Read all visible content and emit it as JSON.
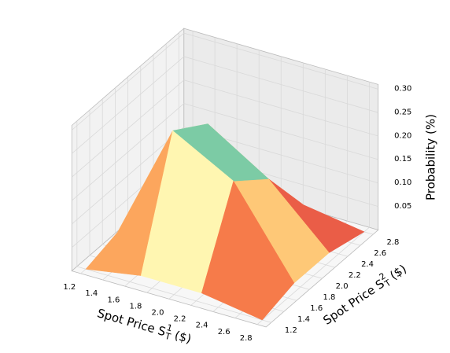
{
  "chart_data": {
    "type": "surface",
    "x_label": {
      "text": "Spot Price S",
      "sub": "T",
      "sup": "1",
      "end": "($)"
    },
    "y_label": {
      "text": "Spot Price S",
      "sub": "T",
      "sup": "2",
      "end": "($)"
    },
    "z_label": "Probability (%)",
    "x": [
      1.2,
      1.7,
      2.25,
      2.8
    ],
    "y": [
      1.2,
      1.7,
      2.25,
      2.8
    ],
    "z": [
      [
        0.0,
        0.02,
        0.02,
        0.0
      ],
      [
        0.02,
        0.27,
        0.2,
        0.02
      ],
      [
        0.02,
        0.22,
        0.14,
        0.02
      ],
      [
        0.0,
        0.02,
        0.02,
        0.0
      ]
    ],
    "colormap": [
      "#9e0142",
      "#d53e4f",
      "#f46d43",
      "#fdae61",
      "#fee08b",
      "#ffffbf",
      "#e6f598",
      "#abdda4",
      "#66c2a5",
      "#3288bd",
      "#5e4fa2"
    ],
    "xlim": [
      1.12,
      2.88
    ],
    "ylim": [
      1.12,
      2.88
    ],
    "zlim": [
      0.0,
      0.31
    ],
    "xticks": [
      1.2,
      1.4,
      1.6,
      1.8,
      {
        "value": 2.0,
        "label": "2.0"
      },
      2.2,
      2.4,
      2.6,
      2.8
    ],
    "yticks": [
      1.2,
      1.4,
      1.6,
      1.8,
      {
        "value": 2.0,
        "label": "2.0"
      },
      2.2,
      2.4,
      2.6,
      2.8
    ],
    "zticks": [
      0.05,
      {
        "value": 0.1,
        "label": "0.10"
      },
      0.15,
      {
        "value": 0.2,
        "label": "0.20"
      },
      0.25,
      {
        "value": 0.3,
        "label": "0.30"
      }
    ],
    "grid": true
  }
}
